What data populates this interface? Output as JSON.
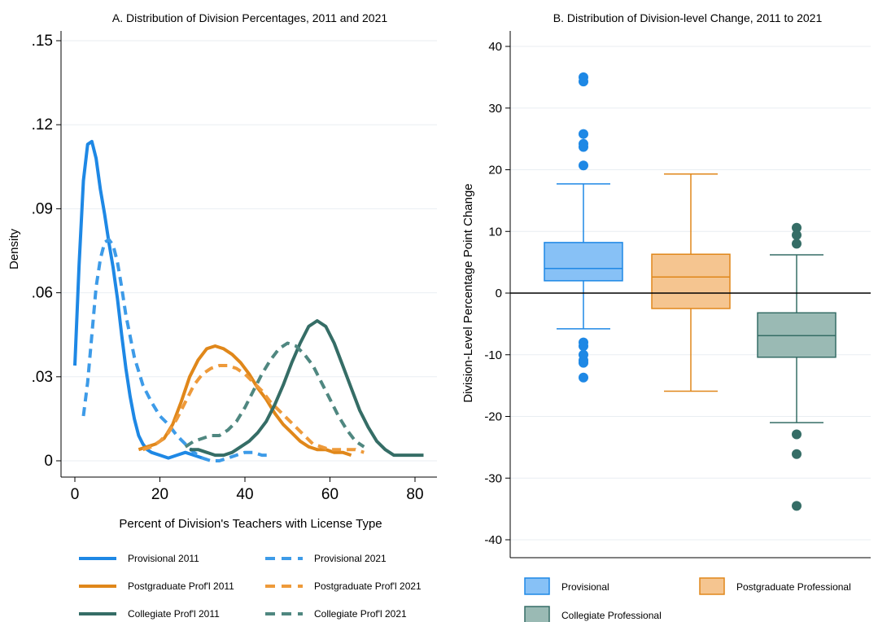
{
  "chart_data": [
    {
      "type": "line",
      "panel": "A",
      "title": "A. Distribution of Division Percentages, 2011 and 2021",
      "xlabel": "Percent of Division's Teachers with License Type",
      "ylabel": "Density",
      "xlim": [
        0,
        82
      ],
      "ylim": [
        0,
        0.15
      ],
      "xticks": [
        "0",
        "20",
        "40",
        "60",
        "80"
      ],
      "yticks": [
        "0",
        ".03",
        ".06",
        ".09",
        ".12",
        ".15"
      ],
      "grid": true,
      "legend_position": "bottom",
      "series": [
        {
          "name": "Provisional 2011",
          "color": "#1e88e5",
          "style": "solid",
          "x": [
            0,
            1,
            2,
            3,
            4,
            5,
            6,
            7,
            8,
            9,
            10,
            11,
            12,
            13,
            14,
            15,
            16,
            17,
            18,
            20,
            22,
            24,
            26,
            28,
            30
          ],
          "y": [
            0.034,
            0.07,
            0.1,
            0.113,
            0.114,
            0.108,
            0.097,
            0.088,
            0.078,
            0.069,
            0.058,
            0.045,
            0.033,
            0.023,
            0.015,
            0.009,
            0.006,
            0.004,
            0.003,
            0.002,
            0.001,
            0.002,
            0.003,
            0.002,
            0.001
          ]
        },
        {
          "name": "Provisional 2021",
          "color": "#3d9be8",
          "style": "dashed",
          "x": [
            2,
            3,
            4,
            5,
            6,
            7,
            8,
            9,
            10,
            11,
            12,
            14,
            16,
            18,
            20,
            22,
            24,
            26,
            28,
            30,
            32,
            34,
            36,
            38,
            40,
            42,
            44,
            46
          ],
          "y": [
            0.016,
            0.028,
            0.045,
            0.062,
            0.072,
            0.078,
            0.079,
            0.077,
            0.071,
            0.062,
            0.052,
            0.037,
            0.027,
            0.021,
            0.016,
            0.013,
            0.009,
            0.006,
            0.003,
            0.001,
            0.0,
            0.0,
            0.001,
            0.002,
            0.003,
            0.003,
            0.002,
            0.002
          ]
        },
        {
          "name": "Postgraduate Prof'l 2011",
          "color": "#e0871a",
          "style": "solid",
          "x": [
            15,
            17,
            19,
            21,
            23,
            25,
            27,
            29,
            31,
            33,
            35,
            37,
            39,
            41,
            43,
            45,
            47,
            49,
            51,
            53,
            55,
            57,
            59,
            61,
            63,
            65
          ],
          "y": [
            0.004,
            0.005,
            0.006,
            0.008,
            0.013,
            0.021,
            0.03,
            0.036,
            0.04,
            0.041,
            0.04,
            0.038,
            0.035,
            0.031,
            0.026,
            0.022,
            0.017,
            0.013,
            0.01,
            0.007,
            0.005,
            0.004,
            0.004,
            0.003,
            0.003,
            0.002
          ]
        },
        {
          "name": "Postgraduate Prof'l 2021",
          "color": "#ee9a3a",
          "style": "dashed",
          "x": [
            16,
            18,
            20,
            22,
            24,
            26,
            28,
            30,
            32,
            34,
            36,
            38,
            40,
            42,
            44,
            46,
            48,
            50,
            52,
            54,
            56,
            58,
            60,
            62,
            64,
            66,
            68
          ],
          "y": [
            0.004,
            0.005,
            0.007,
            0.01,
            0.015,
            0.021,
            0.027,
            0.031,
            0.033,
            0.034,
            0.034,
            0.033,
            0.031,
            0.028,
            0.025,
            0.021,
            0.018,
            0.015,
            0.012,
            0.009,
            0.006,
            0.005,
            0.004,
            0.004,
            0.004,
            0.004,
            0.003
          ]
        },
        {
          "name": "Collegiate Prof'l 2011",
          "color": "#356d66",
          "style": "solid",
          "x": [
            27,
            29,
            31,
            33,
            35,
            37,
            39,
            41,
            43,
            45,
            47,
            49,
            51,
            53,
            55,
            57,
            59,
            61,
            63,
            65,
            67,
            69,
            71,
            73,
            75,
            77,
            80,
            82
          ],
          "y": [
            0.004,
            0.004,
            0.003,
            0.002,
            0.002,
            0.003,
            0.005,
            0.007,
            0.01,
            0.014,
            0.02,
            0.027,
            0.035,
            0.042,
            0.048,
            0.05,
            0.048,
            0.042,
            0.034,
            0.026,
            0.018,
            0.012,
            0.007,
            0.004,
            0.002,
            0.002,
            0.002,
            0.002
          ]
        },
        {
          "name": "Collegiate Prof'l 2021",
          "color": "#4f8780",
          "style": "dashed",
          "x": [
            26,
            28,
            30,
            32,
            34,
            36,
            38,
            40,
            42,
            44,
            46,
            48,
            50,
            52,
            54,
            56,
            58,
            60,
            62,
            64,
            66,
            68
          ],
          "y": [
            0.005,
            0.007,
            0.008,
            0.009,
            0.009,
            0.011,
            0.014,
            0.019,
            0.025,
            0.031,
            0.036,
            0.04,
            0.042,
            0.041,
            0.038,
            0.034,
            0.028,
            0.022,
            0.016,
            0.011,
            0.007,
            0.005
          ]
        }
      ]
    },
    {
      "type": "box",
      "panel": "B",
      "title": "B. Distribution of Division-level Change, 2011 to 2021",
      "ylabel": "Division-Level Percentage Point Change",
      "ylim": [
        -42,
        42
      ],
      "yticks": [
        "-40",
        "-30",
        "-20",
        "-10",
        "0",
        "10",
        "20",
        "30",
        "40"
      ],
      "grid": true,
      "reference_line": 0,
      "legend_position": "bottom",
      "series": [
        {
          "name": "Provisional",
          "color": "#1e88e5",
          "fill": "#87c1f6",
          "whisker_low": -5.8,
          "q1": 2.0,
          "median": 4.0,
          "q3": 8.2,
          "whisker_high": 17.7,
          "outliers": [
            35.0,
            34.3,
            25.8,
            24.2,
            23.7,
            20.7,
            -8.0,
            -8.6,
            -10.0,
            -10.9,
            -11.3,
            -13.7
          ]
        },
        {
          "name": "Postgraduate Professional",
          "color": "#e0871a",
          "fill": "#f5c590",
          "whisker_low": -15.9,
          "q1": -2.5,
          "median": 2.6,
          "q3": 6.3,
          "whisker_high": 19.3,
          "outliers": []
        },
        {
          "name": "Collegiate Professional",
          "color": "#356d66",
          "fill": "#9abab4",
          "whisker_low": -21.0,
          "q1": -10.4,
          "median": -6.9,
          "q3": -3.2,
          "whisker_high": 6.2,
          "outliers": [
            10.6,
            9.4,
            8.0,
            -22.9,
            -26.1,
            -34.5
          ]
        }
      ]
    }
  ]
}
